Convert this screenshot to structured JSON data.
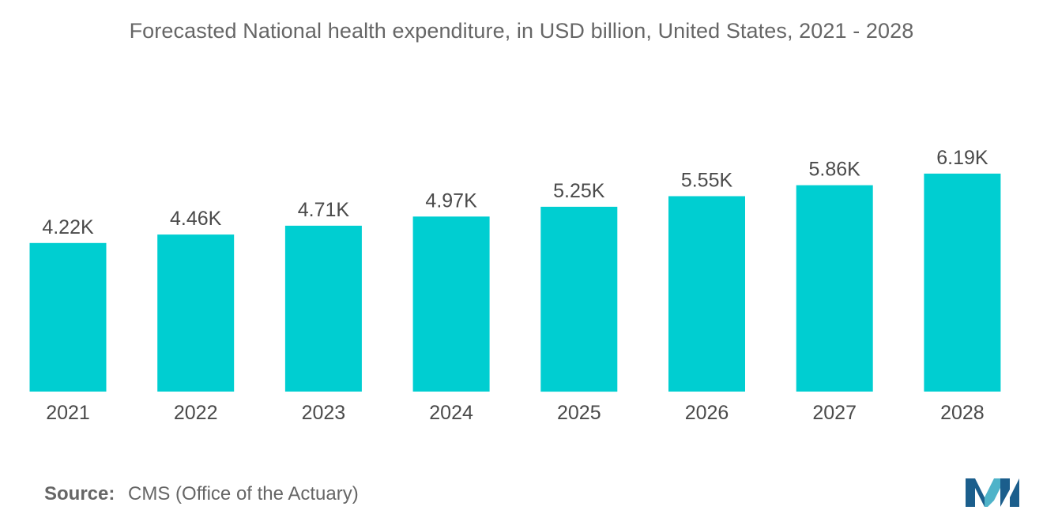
{
  "chart_data": {
    "type": "bar",
    "title": "Forecasted National health expenditure, in USD billion, United States, 2021 - 2028",
    "categories": [
      "2021",
      "2022",
      "2023",
      "2024",
      "2025",
      "2026",
      "2027",
      "2028"
    ],
    "values": [
      4220,
      4460,
      4710,
      4970,
      5250,
      5550,
      5860,
      6190
    ],
    "data_labels": [
      "4.22K",
      "4.46K",
      "4.71K",
      "4.97K",
      "5.25K",
      "5.55K",
      "5.86K",
      "6.19K"
    ],
    "xlabel": "",
    "ylabel": "",
    "ylim": [
      0,
      8000
    ],
    "grid": false,
    "legend": "none",
    "bar_color": "#00CED1"
  },
  "source": {
    "label": "Source:",
    "text": "CMS (Office of the Actuary)"
  },
  "colors": {
    "bar": "#00CED1",
    "text": "#666666",
    "logo_dark": "#1B5E8C",
    "logo_light": "#4FB3C9"
  }
}
